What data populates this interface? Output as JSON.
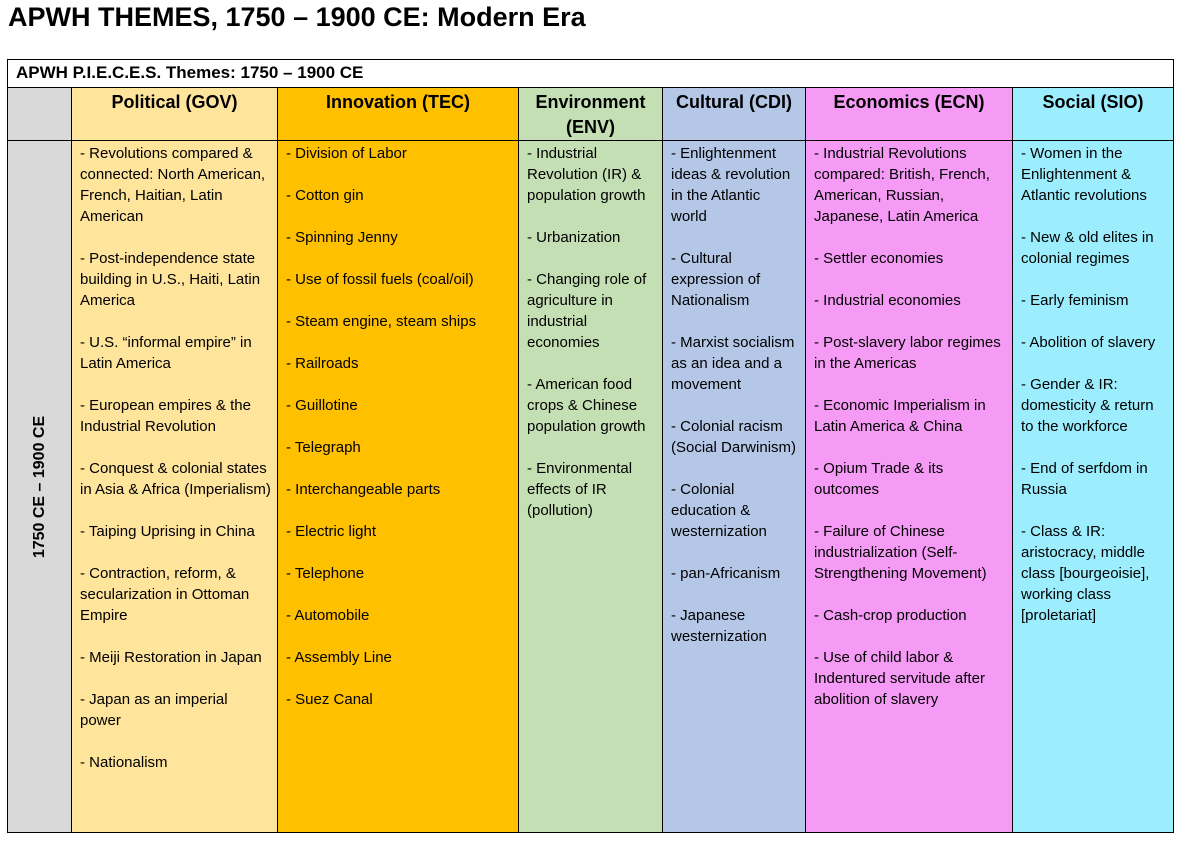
{
  "title": "APWH THEMES, 1750 – 1900 CE: Modern Era",
  "table_caption": "APWH P.I.E.C.E.S. Themes: 1750 – 1900 CE",
  "era_label": "1750 CE – 1900 CE",
  "columns": [
    {
      "key": "gov",
      "header": "Political (GOV)",
      "color": "#ffe49c",
      "items": [
        "- Revolutions compared & connected: North American, French, Haitian, Latin American",
        "- Post-independence state building in U.S., Haiti, Latin America",
        "- U.S. “informal empire” in Latin America",
        "- European empires & the Industrial Revolution",
        "- Conquest & colonial states in Asia & Africa (Imperialism)",
        "- Taiping Uprising in China",
        "- Contraction, reform, & secularization in Ottoman Empire",
        "- Meiji Restoration in Japan",
        "- Japan as an imperial power",
        "- Nationalism"
      ]
    },
    {
      "key": "tec",
      "header": "Innovation (TEC)",
      "color": "#ffc000",
      "items": [
        "- Division of Labor",
        "- Cotton gin",
        "- Spinning Jenny",
        "- Use of fossil fuels (coal/oil)",
        "- Steam engine, steam ships",
        "- Railroads",
        "- Guillotine",
        "- Telegraph",
        "- Interchangeable parts",
        "- Electric light",
        "- Telephone",
        "- Automobile",
        "- Assembly Line",
        "- Suez Canal"
      ]
    },
    {
      "key": "env",
      "header": "Environment (ENV)",
      "color": "#c5dfb4",
      "items": [
        "- Industrial Revolution (IR) & population growth",
        "- Urbanization",
        "- Changing role of agriculture in industrial economies",
        "- American food crops & Chinese population growth",
        "- Environmental effects of IR (pollution)"
      ]
    },
    {
      "key": "cdi",
      "header": "Cultural (CDI)",
      "color": "#b4c7e7",
      "items": [
        "- Enlightenment ideas & revolution in the Atlantic world",
        "- Cultural expression of Nationalism",
        "- Marxist socialism as an idea and a movement",
        "- Colonial racism (Social Darwinism)",
        "- Colonial education & westernization",
        "- pan-Africanism",
        "- Japanese westernization"
      ]
    },
    {
      "key": "ecn",
      "header": "Economics (ECN)",
      "color": "#f59bf5",
      "items": [
        "- Industrial Revolutions compared: British, French, American, Russian, Japanese, Latin America",
        "- Settler economies",
        "- Industrial economies",
        "- Post-slavery labor regimes in the Americas",
        "- Economic Imperialism in Latin America & China",
        "- Opium Trade & its outcomes",
        "- Failure of Chinese industrialization (Self-Strengthening Movement)",
        "- Cash-crop production",
        "- Use of child labor & Indentured servitude after abolition of slavery"
      ]
    },
    {
      "key": "sio",
      "header": "Social (SIO)",
      "color": "#9ceeff",
      "items": [
        "- Women in the Enlightenment & Atlantic revolutions",
        "- New & old elites in colonial regimes",
        "- Early feminism",
        "- Abolition of slavery",
        "- Gender & IR: domesticity & return to the workforce",
        "- End of serfdom in Russia",
        "- Class & IR: aristocracy, middle class [bourgeoisie], working class [proletariat]"
      ]
    }
  ]
}
